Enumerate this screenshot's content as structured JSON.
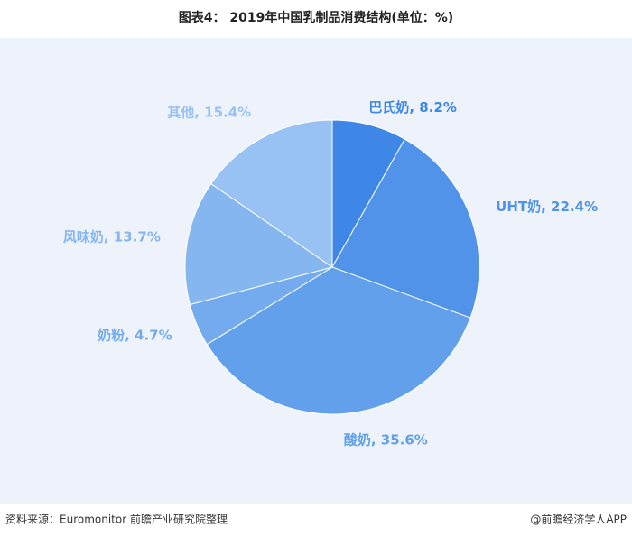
{
  "chart_data": {
    "type": "pie",
    "title": "图表4：  2019年中国乳制品消费结构(单位：%)",
    "values": [
      8.2,
      22.4,
      35.6,
      4.7,
      13.7,
      15.4
    ],
    "value_labels": [
      "巴氏奶, 8.2%",
      "UHT奶, 22.4%",
      "酸奶, 35.6%",
      "奶粉, 4.7%",
      "风味奶, 13.7%",
      "其他, 15.4%"
    ],
    "colors": [
      "#3f87e6",
      "#5193e8",
      "#62a0eb",
      "#74abee",
      "#86b6f0",
      "#98c2f3"
    ],
    "source": "资料来源：Euromonitor 前瞻产业研究院整理",
    "credit": "@前瞻经济学人APP"
  }
}
